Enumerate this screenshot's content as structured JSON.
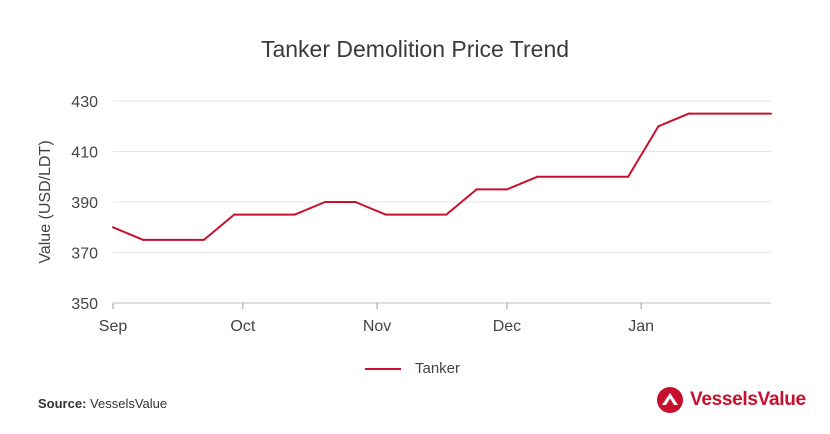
{
  "chart_data": {
    "type": "line",
    "title": "Tanker Demolition Price Trend",
    "xlabel": "",
    "ylabel": "Value (USD/LDT)",
    "ylim": [
      350,
      430
    ],
    "yticks": [
      430,
      410,
      390,
      370,
      350
    ],
    "xtick_labels": [
      "Sep",
      "Oct",
      "Nov",
      "Dec",
      "Jan"
    ],
    "xlim": [
      "2019-09-01",
      "2020-01-31"
    ],
    "grid": "horizontal",
    "legend_position": "bottom",
    "series": [
      {
        "name": "Tanker",
        "color": "#c8102e",
        "points": [
          {
            "x": "2019-09-01",
            "y": 380
          },
          {
            "x": "2019-09-08",
            "y": 375
          },
          {
            "x": "2019-09-22",
            "y": 375
          },
          {
            "x": "2019-09-29",
            "y": 385
          },
          {
            "x": "2019-10-13",
            "y": 385
          },
          {
            "x": "2019-10-20",
            "y": 390
          },
          {
            "x": "2019-10-27",
            "y": 390
          },
          {
            "x": "2019-11-03",
            "y": 385
          },
          {
            "x": "2019-11-17",
            "y": 385
          },
          {
            "x": "2019-11-24",
            "y": 395
          },
          {
            "x": "2019-12-01",
            "y": 395
          },
          {
            "x": "2019-12-08",
            "y": 400
          },
          {
            "x": "2019-12-29",
            "y": 400
          },
          {
            "x": "2020-01-05",
            "y": 420
          },
          {
            "x": "2020-01-12",
            "y": 425
          },
          {
            "x": "2020-01-31",
            "y": 425
          }
        ]
      }
    ]
  },
  "footer": {
    "source_label": "Source:",
    "source_value": "VesselsValue",
    "brand_name": "VesselsValue",
    "brand_icon": "vesselsvalue-logo-icon",
    "brand_color": "#c8102e"
  }
}
